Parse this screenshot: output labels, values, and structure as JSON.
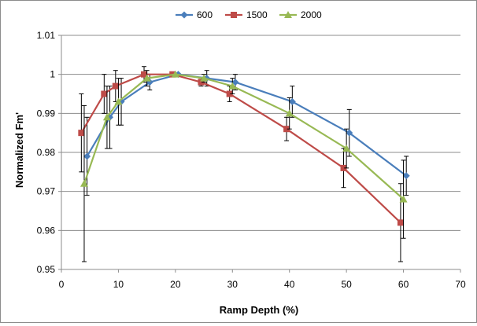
{
  "chart_data": {
    "type": "line",
    "title": "",
    "xlabel": "Ramp Depth (%)",
    "ylabel": "Normalized Fm'",
    "xlim": [
      0,
      70
    ],
    "ylim": [
      0.95,
      1.01
    ],
    "xticks": [
      0,
      10,
      20,
      30,
      40,
      50,
      60,
      70
    ],
    "yticks": [
      0.95,
      0.96,
      0.97,
      0.98,
      0.99,
      1,
      1.01
    ],
    "xtick_labels": [
      "0",
      "10",
      "20",
      "30",
      "40",
      "50",
      "60",
      "70"
    ],
    "ytick_labels": [
      "0.95",
      "0.96",
      "0.97",
      "0.98",
      "0.99",
      "1",
      "1.01"
    ],
    "grid": {
      "horizontal": true,
      "vertical": false
    },
    "legend_position": "top-center",
    "series": [
      {
        "name": "600",
        "color": "#4a7ebb",
        "marker": "diamond",
        "points": [
          {
            "x": 4.5,
            "y": 0.979,
            "err_low": 0.969,
            "err_high": 0.989
          },
          {
            "x": 8.5,
            "y": 0.989,
            "err_low": 0.981,
            "err_high": 0.997
          },
          {
            "x": 10.5,
            "y": 0.993,
            "err_low": 0.987,
            "err_high": 0.999
          },
          {
            "x": 15.5,
            "y": 0.998,
            "err_low": 0.996,
            "err_high": 1.0
          },
          {
            "x": 20.5,
            "y": 1.0,
            "err_low": 1.0,
            "err_high": 1.0
          },
          {
            "x": 25.5,
            "y": 0.999,
            "err_low": 0.997,
            "err_high": 1.001
          },
          {
            "x": 30.5,
            "y": 0.998,
            "err_low": 0.996,
            "err_high": 1.0
          },
          {
            "x": 40.5,
            "y": 0.993,
            "err_low": 0.989,
            "err_high": 0.997
          },
          {
            "x": 50.5,
            "y": 0.985,
            "err_low": 0.979,
            "err_high": 0.991
          },
          {
            "x": 60.5,
            "y": 0.974,
            "err_low": 0.969,
            "err_high": 0.979
          }
        ]
      },
      {
        "name": "1500",
        "color": "#be4b48",
        "marker": "square",
        "points": [
          {
            "x": 3.5,
            "y": 0.985,
            "err_low": 0.975,
            "err_high": 0.995
          },
          {
            "x": 7.5,
            "y": 0.995,
            "err_low": 0.99,
            "err_high": 1.0
          },
          {
            "x": 9.5,
            "y": 0.997,
            "err_low": 0.993,
            "err_high": 1.001
          },
          {
            "x": 14.5,
            "y": 1.0,
            "err_low": 0.998,
            "err_high": 1.002
          },
          {
            "x": 19.5,
            "y": 1.0,
            "err_low": 1.0,
            "err_high": 1.0
          },
          {
            "x": 24.5,
            "y": 0.998,
            "err_low": 0.997,
            "err_high": 0.999
          },
          {
            "x": 29.5,
            "y": 0.995,
            "err_low": 0.993,
            "err_high": 0.997
          },
          {
            "x": 39.5,
            "y": 0.986,
            "err_low": 0.983,
            "err_high": 0.989
          },
          {
            "x": 49.5,
            "y": 0.976,
            "err_low": 0.971,
            "err_high": 0.981
          },
          {
            "x": 59.5,
            "y": 0.962,
            "err_low": 0.952,
            "err_high": 0.972
          }
        ]
      },
      {
        "name": "2000",
        "color": "#98b954",
        "marker": "triangle",
        "points": [
          {
            "x": 4.0,
            "y": 0.972,
            "err_low": 0.952,
            "err_high": 0.992
          },
          {
            "x": 8.0,
            "y": 0.989,
            "err_low": 0.981,
            "err_high": 0.997
          },
          {
            "x": 10.0,
            "y": 0.993,
            "err_low": 0.987,
            "err_high": 0.999
          },
          {
            "x": 15.0,
            "y": 0.999,
            "err_low": 0.997,
            "err_high": 1.001
          },
          {
            "x": 20.0,
            "y": 1.0,
            "err_low": 1.0,
            "err_high": 1.0
          },
          {
            "x": 25.0,
            "y": 0.999,
            "err_low": 0.998,
            "err_high": 1.0
          },
          {
            "x": 30.0,
            "y": 0.997,
            "err_low": 0.995,
            "err_high": 0.999
          },
          {
            "x": 40.0,
            "y": 0.99,
            "err_low": 0.986,
            "err_high": 0.994
          },
          {
            "x": 50.0,
            "y": 0.981,
            "err_low": 0.976,
            "err_high": 0.986
          },
          {
            "x": 60.0,
            "y": 0.968,
            "err_low": 0.958,
            "err_high": 0.978
          }
        ]
      }
    ]
  }
}
